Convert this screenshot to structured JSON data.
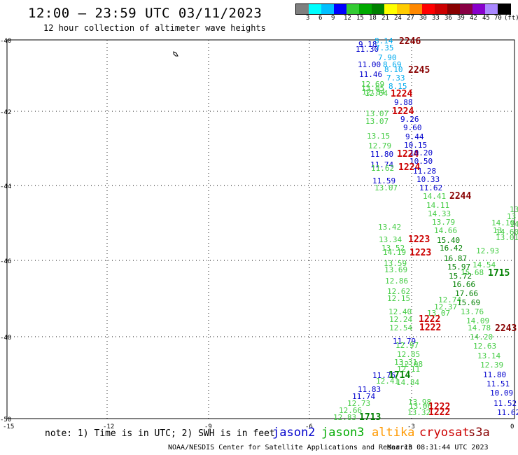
{
  "header": {
    "title": "12:00 – 23:59 UTC 03/11/2023",
    "subtitle": "12 hour collection of altimeter wave heights"
  },
  "legend": {
    "colors": [
      "#7f7f7f",
      "#00ffff",
      "#00bfff",
      "#0000ff",
      "#33cc33",
      "#00aa00",
      "#008000",
      "#ffff00",
      "#ffcc00",
      "#ff8800",
      "#ff0000",
      "#cc0000",
      "#880000",
      "#880044",
      "#8800cc",
      "#aa88ff",
      "#000000"
    ],
    "labels": [
      "3",
      "6",
      "9",
      "12",
      "15",
      "18",
      "21",
      "24",
      "27",
      "30",
      "33",
      "36",
      "39",
      "42",
      "45",
      "70",
      "(ft)"
    ]
  },
  "axes": {
    "lat_labels": [
      "-40",
      "-42",
      "-44",
      "-46",
      "-48",
      "-50"
    ],
    "lon_labels": [
      "-15",
      "-12",
      "-9",
      "-6",
      "-3",
      "0"
    ]
  },
  "colors": {
    "jason2": "#0000cc",
    "jason3": "#44cc44",
    "jason3_dark": "#008000",
    "altika": "#ff9900",
    "cryosat": "#cc0000",
    "s3a": "#880000",
    "cyan": "#00aaee"
  },
  "observations": [
    {
      "text": "2246",
      "c": "s3a",
      "big": true
    },
    {
      "text": "8.14",
      "c": "cyan"
    },
    {
      "text": "9.18",
      "c": "jason2"
    },
    {
      "text": "11.30",
      "c": "jason2"
    },
    {
      "text": "7.35",
      "c": "cyan"
    },
    {
      "text": "7.90",
      "c": "cyan"
    },
    {
      "text": "11.00",
      "c": "jason2"
    },
    {
      "text": "8.69",
      "c": "cyan"
    },
    {
      "text": "8.10",
      "c": "cyan"
    },
    {
      "text": "2245",
      "c": "s3a",
      "big": true
    },
    {
      "text": "11.46",
      "c": "jason2"
    },
    {
      "text": "7.33",
      "c": "cyan"
    },
    {
      "text": "12.69",
      "c": "jason3"
    },
    {
      "text": "8.15",
      "c": "cyan"
    },
    {
      "text": "13.05",
      "c": "jason3"
    },
    {
      "text": "12.84",
      "c": "jason3"
    },
    {
      "text": "12.64",
      "c": "jason3"
    },
    {
      "text": "1224",
      "c": "cryosat",
      "big": true
    },
    {
      "text": "9.88",
      "c": "jason2"
    },
    {
      "text": "1224",
      "c": "cryosat",
      "big": true
    },
    {
      "text": "13.07",
      "c": "jason3"
    },
    {
      "text": "9.26",
      "c": "jason2"
    },
    {
      "text": "13.07",
      "c": "jason3"
    },
    {
      "text": "9.60",
      "c": "jason2"
    },
    {
      "text": "13.15",
      "c": "jason3"
    },
    {
      "text": "9.44",
      "c": "jason2"
    },
    {
      "text": "12.79",
      "c": "jason3"
    },
    {
      "text": "10.15",
      "c": "jason2"
    },
    {
      "text": "11.80",
      "c": "jason2"
    },
    {
      "text": "1224",
      "c": "cryosat",
      "big": true
    },
    {
      "text": "10.20",
      "c": "jason2"
    },
    {
      "text": "10.50",
      "c": "jason2"
    },
    {
      "text": "11.74",
      "c": "jason2"
    },
    {
      "text": "11.62",
      "c": "jason3"
    },
    {
      "text": "1224",
      "c": "cryosat",
      "big": true
    },
    {
      "text": "11.28",
      "c": "jason2"
    },
    {
      "text": "10.33",
      "c": "jason2"
    },
    {
      "text": "11.59",
      "c": "jason2"
    },
    {
      "text": "13.07",
      "c": "jason3"
    },
    {
      "text": "11.62",
      "c": "jason2"
    },
    {
      "text": "14.41",
      "c": "jason3"
    },
    {
      "text": "2244",
      "c": "s3a",
      "big": true
    },
    {
      "text": "14.11",
      "c": "jason3"
    },
    {
      "text": "14.33",
      "c": "jason3"
    },
    {
      "text": "13.79",
      "c": "jason3"
    },
    {
      "text": "13.42",
      "c": "jason3"
    },
    {
      "text": "14.66",
      "c": "jason3"
    },
    {
      "text": "13.34",
      "c": "jason3"
    },
    {
      "text": "1223",
      "c": "cryosat",
      "big": true
    },
    {
      "text": "15.40",
      "c": "jason3_dark"
    },
    {
      "text": "13.52",
      "c": "jason3"
    },
    {
      "text": "14.19",
      "c": "jason3"
    },
    {
      "text": "1223",
      "c": "cryosat",
      "big": true
    },
    {
      "text": "16.42",
      "c": "jason3_dark"
    },
    {
      "text": "16.87",
      "c": "jason3_dark"
    },
    {
      "text": "13.59",
      "c": "jason3"
    },
    {
      "text": "15.97",
      "c": "jason3_dark"
    },
    {
      "text": "13.69",
      "c": "jason3"
    },
    {
      "text": "15.72",
      "c": "jason3_dark"
    },
    {
      "text": "14.54",
      "c": "jason3"
    },
    {
      "text": "15.68",
      "c": "jason3"
    },
    {
      "text": "1715",
      "c": "jason3_dark",
      "big": true
    },
    {
      "text": "12.86",
      "c": "jason3"
    },
    {
      "text": "16.66",
      "c": "jason3_dark"
    },
    {
      "text": "12.62",
      "c": "jason3"
    },
    {
      "text": "17.66",
      "c": "jason3_dark"
    },
    {
      "text": "12.15",
      "c": "jason3"
    },
    {
      "text": "12.74",
      "c": "jason3"
    },
    {
      "text": "15.69",
      "c": "jason3_dark"
    },
    {
      "text": "12.37",
      "c": "jason3"
    },
    {
      "text": "12.40",
      "c": "jason3"
    },
    {
      "text": "13.76",
      "c": "jason3"
    },
    {
      "text": "13.07",
      "c": "jason3"
    },
    {
      "text": "1222",
      "c": "cryosat",
      "big": true
    },
    {
      "text": "12.24",
      "c": "jason3"
    },
    {
      "text": "14.09",
      "c": "jason3"
    },
    {
      "text": "12.54",
      "c": "jason3"
    },
    {
      "text": "1222",
      "c": "cryosat",
      "big": true
    },
    {
      "text": "14.78",
      "c": "jason3"
    },
    {
      "text": "2243",
      "c": "s3a",
      "big": true
    },
    {
      "text": "14.20",
      "c": "jason3"
    },
    {
      "text": "11.79",
      "c": "jason2"
    },
    {
      "text": "12.63",
      "c": "jason3"
    },
    {
      "text": "12.97",
      "c": "jason3"
    },
    {
      "text": "13.14",
      "c": "jason3"
    },
    {
      "text": "12.85",
      "c": "jason3"
    },
    {
      "text": "12.39",
      "c": "jason3"
    },
    {
      "text": "13.31",
      "c": "jason3"
    },
    {
      "text": "12.08",
      "c": "jason3"
    },
    {
      "text": "12.11",
      "c": "jason3"
    },
    {
      "text": "11.80",
      "c": "jason2"
    },
    {
      "text": "11.76",
      "c": "jason2"
    },
    {
      "text": "1714",
      "c": "jason3_dark",
      "big": true
    },
    {
      "text": "11.51",
      "c": "jason2"
    },
    {
      "text": "12.41",
      "c": "jason3"
    },
    {
      "text": "14.84",
      "c": "jason3"
    },
    {
      "text": "11.83",
      "c": "jason2"
    },
    {
      "text": "10.09",
      "c": "jason2"
    },
    {
      "text": "11.74",
      "c": "jason2"
    },
    {
      "text": "12.73",
      "c": "jason3"
    },
    {
      "text": "13.98",
      "c": "jason3"
    },
    {
      "text": "11.52",
      "c": "jason2"
    },
    {
      "text": "13.06",
      "c": "jason3"
    },
    {
      "text": "1222",
      "c": "cryosat",
      "big": true
    },
    {
      "text": "12.66",
      "c": "jason3"
    },
    {
      "text": "13.32",
      "c": "jason3"
    },
    {
      "text": "1222",
      "c": "cryosat",
      "big": true
    },
    {
      "text": "11.62",
      "c": "jason2"
    },
    {
      "text": "12.83",
      "c": "jason3"
    },
    {
      "text": "1713",
      "c": "jason3_dark",
      "big": true
    },
    {
      "text": "13.01",
      "c": "jason3"
    },
    {
      "text": "14.10",
      "c": "jason3"
    },
    {
      "text": "14.60",
      "c": "jason3"
    },
    {
      "text": "12.93",
      "c": "jason3"
    },
    {
      "text": "13",
      "c": "jason3"
    },
    {
      "text": "13",
      "c": "jason3"
    },
    {
      "text": "13",
      "c": "jason3"
    },
    {
      "text": "14.11",
      "c": "jason3"
    }
  ],
  "note": "note: 1) Time is in UTC; 2) SWH is in feet",
  "satellites": [
    {
      "name": "jason2",
      "color": "#0000cc"
    },
    {
      "name": "jason3",
      "color": "#00aa00"
    },
    {
      "name": "altika",
      "color": "#ff9900"
    },
    {
      "name": "cryosat",
      "color": "#cc0000"
    },
    {
      "name": "s3a",
      "color": "#880000"
    }
  ],
  "footer": {
    "credit": "NOAA/NESDIS Center for Satellite Applications and Research",
    "timestamp": "Mar 13 08:31:44 UTC 2023"
  }
}
